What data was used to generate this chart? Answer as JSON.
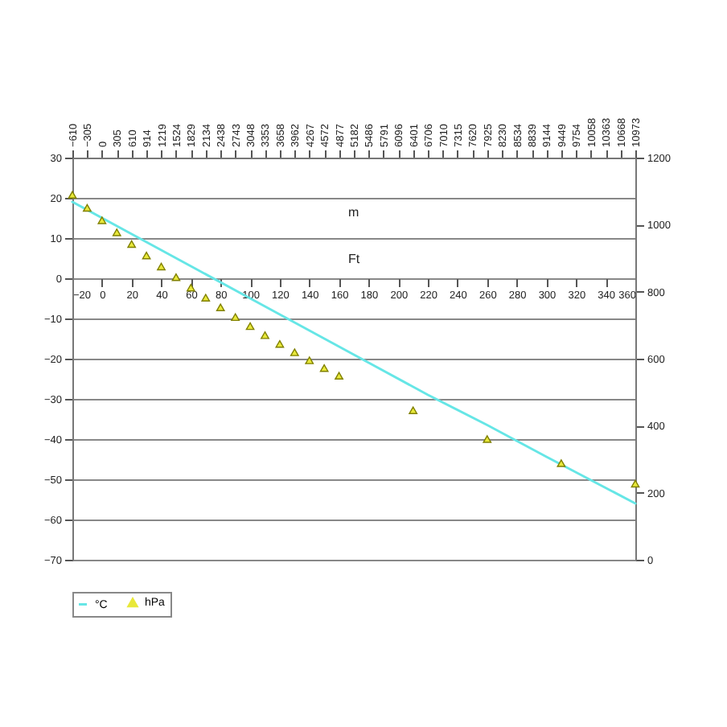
{
  "chart_data": {
    "type": "line",
    "xlabel": "Ft",
    "x2label": "m",
    "xlim": [
      -20,
      360
    ],
    "xticks": [
      -20,
      0,
      20,
      40,
      60,
      80,
      100,
      120,
      140,
      160,
      180,
      200,
      220,
      240,
      260,
      280,
      300,
      320,
      340,
      360
    ],
    "x2lim": [
      -610,
      10973
    ],
    "x2ticks": [
      -610,
      -305,
      0,
      305,
      610,
      914,
      1219,
      1524,
      1829,
      2134,
      2438,
      2743,
      3048,
      3353,
      3658,
      3962,
      4267,
      4572,
      4877,
      5182,
      5486,
      5791,
      6096,
      6401,
      6706,
      7010,
      7315,
      7620,
      7925,
      8230,
      8534,
      8839,
      9144,
      9449,
      9754,
      10058,
      10363,
      10668,
      10973
    ],
    "ylim": [
      -70,
      30
    ],
    "yticks": [
      -70,
      -60,
      -50,
      -40,
      -30,
      -20,
      -10,
      0,
      10,
      20,
      30
    ],
    "y2lim": [
      0,
      1200
    ],
    "y2ticks": [
      0,
      200,
      400,
      600,
      800,
      1000,
      1200
    ],
    "grid": "y",
    "legend": "bottom",
    "series": [
      {
        "name": "°C",
        "color": "#66e6e6",
        "x": [
          -20,
          20,
          60,
          100,
          140,
          180,
          220,
          260,
          300,
          360
        ],
        "values": [
          19,
          11,
          3,
          -5,
          -13,
          -21,
          -29,
          -36.5,
          -44.4,
          -56
        ]
      },
      {
        "name": "hPa",
        "type": "scatter",
        "marker": "triangle",
        "axis": "y2",
        "color": "#e8e83a",
        "x": [
          -20,
          -10,
          0,
          10,
          20,
          30,
          40,
          50,
          60,
          70,
          80,
          90,
          100,
          110,
          120,
          130,
          140,
          150,
          160,
          210,
          260,
          310,
          360
        ],
        "values": [
          1089,
          1050,
          1013,
          977,
          942,
          908,
          875,
          843,
          812,
          782,
          753,
          724,
          697,
          670,
          644,
          619,
          595,
          572,
          549,
          446,
          360,
          288,
          227
        ]
      }
    ]
  }
}
